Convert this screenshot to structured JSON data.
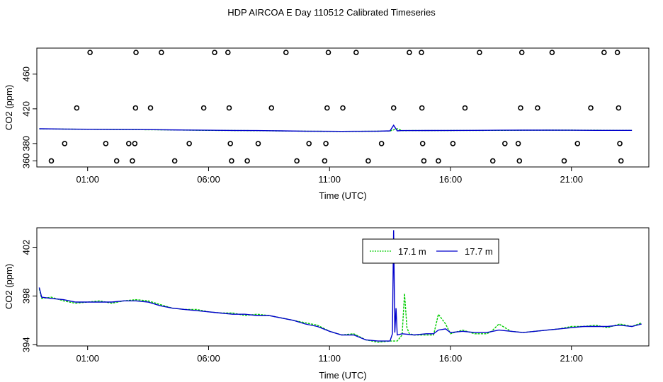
{
  "page_title": "HDP AIRCOA E  Day 110512  Calibrated Timeseries",
  "chart_data": [
    {
      "type": "scatter",
      "xlabel": "Time (UTC)",
      "ylabel": "CO2 (ppm)",
      "x_unit": "hours UTC",
      "xlim": [
        -1.1,
        24.2
      ],
      "ylim": [
        353,
        490
      ],
      "x_ticks": [
        {
          "value": 1,
          "label": "01:00"
        },
        {
          "value": 6,
          "label": "06:00"
        },
        {
          "value": 11,
          "label": "11:00"
        },
        {
          "value": 16,
          "label": "16:00"
        },
        {
          "value": 21,
          "label": "21:00"
        }
      ],
      "y_ticks": [
        {
          "value": 360,
          "label": "360"
        },
        {
          "value": 380,
          "label": "380"
        },
        {
          "value": 420,
          "label": "420"
        },
        {
          "value": 460,
          "label": "460"
        }
      ],
      "points": [
        [
          -0.5,
          360
        ],
        [
          0.05,
          380
        ],
        [
          0.55,
          421
        ],
        [
          1.1,
          485
        ],
        [
          1.75,
          380
        ],
        [
          2.2,
          360
        ],
        [
          2.7,
          380
        ],
        [
          2.85,
          360
        ],
        [
          2.95,
          380
        ],
        [
          2.98,
          421
        ],
        [
          3.0,
          485
        ],
        [
          3.6,
          421
        ],
        [
          4.05,
          485
        ],
        [
          4.6,
          360
        ],
        [
          5.2,
          380
        ],
        [
          5.8,
          421
        ],
        [
          6.25,
          485
        ],
        [
          6.8,
          485
        ],
        [
          6.85,
          421
        ],
        [
          6.9,
          380
        ],
        [
          6.95,
          360
        ],
        [
          7.6,
          360
        ],
        [
          8.05,
          380
        ],
        [
          8.6,
          421
        ],
        [
          9.2,
          485
        ],
        [
          9.65,
          360
        ],
        [
          10.15,
          380
        ],
        [
          10.8,
          360
        ],
        [
          10.85,
          380
        ],
        [
          10.9,
          421
        ],
        [
          10.95,
          485
        ],
        [
          11.55,
          421
        ],
        [
          12.1,
          485
        ],
        [
          12.6,
          360
        ],
        [
          13.15,
          380
        ],
        [
          13.65,
          421
        ],
        [
          14.3,
          485
        ],
        [
          14.8,
          485
        ],
        [
          14.82,
          421
        ],
        [
          14.85,
          380
        ],
        [
          14.9,
          360
        ],
        [
          15.5,
          360
        ],
        [
          16.1,
          380
        ],
        [
          16.6,
          421
        ],
        [
          17.2,
          485
        ],
        [
          17.75,
          360
        ],
        [
          18.25,
          380
        ],
        [
          18.8,
          380
        ],
        [
          18.85,
          360
        ],
        [
          18.9,
          421
        ],
        [
          18.95,
          485
        ],
        [
          19.6,
          421
        ],
        [
          20.2,
          485
        ],
        [
          20.7,
          360
        ],
        [
          21.25,
          380
        ],
        [
          21.8,
          421
        ],
        [
          22.35,
          485
        ],
        [
          22.9,
          485
        ],
        [
          22.95,
          421
        ],
        [
          23.0,
          380
        ],
        [
          23.05,
          360
        ]
      ],
      "series": [
        {
          "name": "17.1 m",
          "color": "#00cc00",
          "x": [
            -1,
            0,
            1,
            2,
            3,
            4,
            5,
            6,
            7,
            8,
            9,
            10,
            11,
            11.5,
            12,
            13,
            13.5,
            13.8,
            14,
            14.5,
            15,
            16,
            17,
            18,
            19,
            20,
            21,
            22,
            23,
            23.5
          ],
          "y": [
            396.9,
            396.6,
            396.4,
            396.2,
            396.0,
            395.8,
            395.5,
            395.2,
            395.0,
            394.8,
            394.5,
            394.2,
            394.0,
            393.9,
            394.0,
            394.2,
            394.5,
            397.0,
            394.8,
            395.0,
            394.9,
            395.0,
            395.1,
            395.2,
            395.3,
            395.4,
            395.4,
            395.3,
            395.2,
            395.2
          ]
        },
        {
          "name": "17.7 m",
          "color": "#0000cc",
          "x": [
            -1,
            0,
            1,
            2,
            3,
            4,
            5,
            6,
            7,
            8,
            9,
            10,
            11,
            11.5,
            12,
            13,
            13.5,
            13.65,
            13.8,
            14,
            14.5,
            15,
            16,
            17,
            18,
            19,
            20,
            21,
            22,
            23,
            23.5
          ],
          "y": [
            397.0,
            396.7,
            396.5,
            396.3,
            396.1,
            395.9,
            395.6,
            395.3,
            395.1,
            394.9,
            394.6,
            394.3,
            394.1,
            394.0,
            394.1,
            394.3,
            394.6,
            401.0,
            394.6,
            394.9,
            394.9,
            395.0,
            395.1,
            395.2,
            395.3,
            395.4,
            395.4,
            395.3,
            395.2,
            395.2,
            395.2
          ]
        }
      ]
    },
    {
      "type": "line",
      "xlabel": "Time (UTC)",
      "ylabel": "CO2 (ppm)",
      "x_unit": "hours UTC",
      "xlim": [
        -1.1,
        24.2
      ],
      "ylim": [
        393.9,
        403.6
      ],
      "x_ticks": [
        {
          "value": 1,
          "label": "01:00"
        },
        {
          "value": 6,
          "label": "06:00"
        },
        {
          "value": 11,
          "label": "11:00"
        },
        {
          "value": 16,
          "label": "16:00"
        },
        {
          "value": 21,
          "label": "21:00"
        }
      ],
      "y_ticks": [
        {
          "value": 394,
          "label": "394"
        },
        {
          "value": 398,
          "label": "398"
        },
        {
          "value": 402,
          "label": "402"
        }
      ],
      "legend": {
        "position": "top-right"
      },
      "series": [
        {
          "name": "17.1 m",
          "color": "#00cc00",
          "x": [
            -1,
            -0.9,
            -0.5,
            0,
            0.5,
            1,
            1.5,
            2,
            2.5,
            3,
            3.5,
            4,
            4.5,
            5,
            5.5,
            6,
            6.5,
            7,
            7.5,
            8,
            8.5,
            9,
            9.5,
            10,
            10.5,
            11,
            11.5,
            12,
            12.5,
            13,
            13.5,
            13.8,
            14,
            14.1,
            14.2,
            14.3,
            14.5,
            14.8,
            15,
            15.3,
            15.5,
            15.8,
            16,
            16.5,
            17,
            17.5,
            17.7,
            18,
            18.5,
            19,
            19.5,
            20,
            20.5,
            21,
            21.5,
            22,
            22.5,
            23,
            23.5,
            23.9
          ],
          "y": [
            398.6,
            397.8,
            397.9,
            397.6,
            397.4,
            397.5,
            397.6,
            397.4,
            397.6,
            397.7,
            397.6,
            397.3,
            397.0,
            396.9,
            396.9,
            396.7,
            396.6,
            396.6,
            396.4,
            396.5,
            396.4,
            396.2,
            396.0,
            395.8,
            395.6,
            395.1,
            394.8,
            394.9,
            394.4,
            394.2,
            394.3,
            394.3,
            394.8,
            398.2,
            395.4,
            394.9,
            394.8,
            394.8,
            394.8,
            394.8,
            396.5,
            395.7,
            394.9,
            395.2,
            394.9,
            394.9,
            395.1,
            395.7,
            395.1,
            395.0,
            395.1,
            395.2,
            395.3,
            395.5,
            395.5,
            395.6,
            395.4,
            395.7,
            395.5,
            395.8
          ]
        },
        {
          "name": "17.7 m",
          "color": "#0000cc",
          "x": [
            -1,
            -0.9,
            -0.5,
            0,
            0.5,
            1,
            1.5,
            2,
            2.5,
            3,
            3.5,
            4,
            4.5,
            5,
            5.5,
            6,
            6.5,
            7,
            7.5,
            8,
            8.5,
            9,
            9.5,
            10,
            10.5,
            11,
            11.5,
            12,
            12.5,
            13,
            13.5,
            13.6,
            13.65,
            13.7,
            13.75,
            13.8,
            14,
            14.5,
            15,
            15.3,
            15.5,
            15.8,
            16,
            16.5,
            17,
            17.5,
            18,
            18.5,
            19,
            19.5,
            20,
            20.5,
            21,
            21.5,
            22,
            22.5,
            23,
            23.5,
            23.9
          ],
          "y": [
            398.7,
            397.9,
            397.8,
            397.7,
            397.5,
            397.5,
            397.5,
            397.5,
            397.6,
            397.6,
            397.5,
            397.2,
            397.0,
            396.9,
            396.8,
            396.7,
            396.6,
            396.5,
            396.5,
            396.4,
            396.4,
            396.2,
            396.0,
            395.7,
            395.5,
            395.1,
            394.8,
            394.8,
            394.4,
            394.3,
            394.3,
            394.9,
            403.4,
            395.0,
            397.0,
            394.8,
            394.9,
            394.8,
            394.9,
            394.9,
            395.2,
            395.3,
            395.0,
            395.1,
            395.0,
            395.0,
            395.2,
            395.1,
            395.0,
            395.1,
            395.2,
            395.3,
            395.4,
            395.5,
            395.5,
            395.5,
            395.6,
            395.5,
            395.7
          ]
        }
      ]
    }
  ]
}
